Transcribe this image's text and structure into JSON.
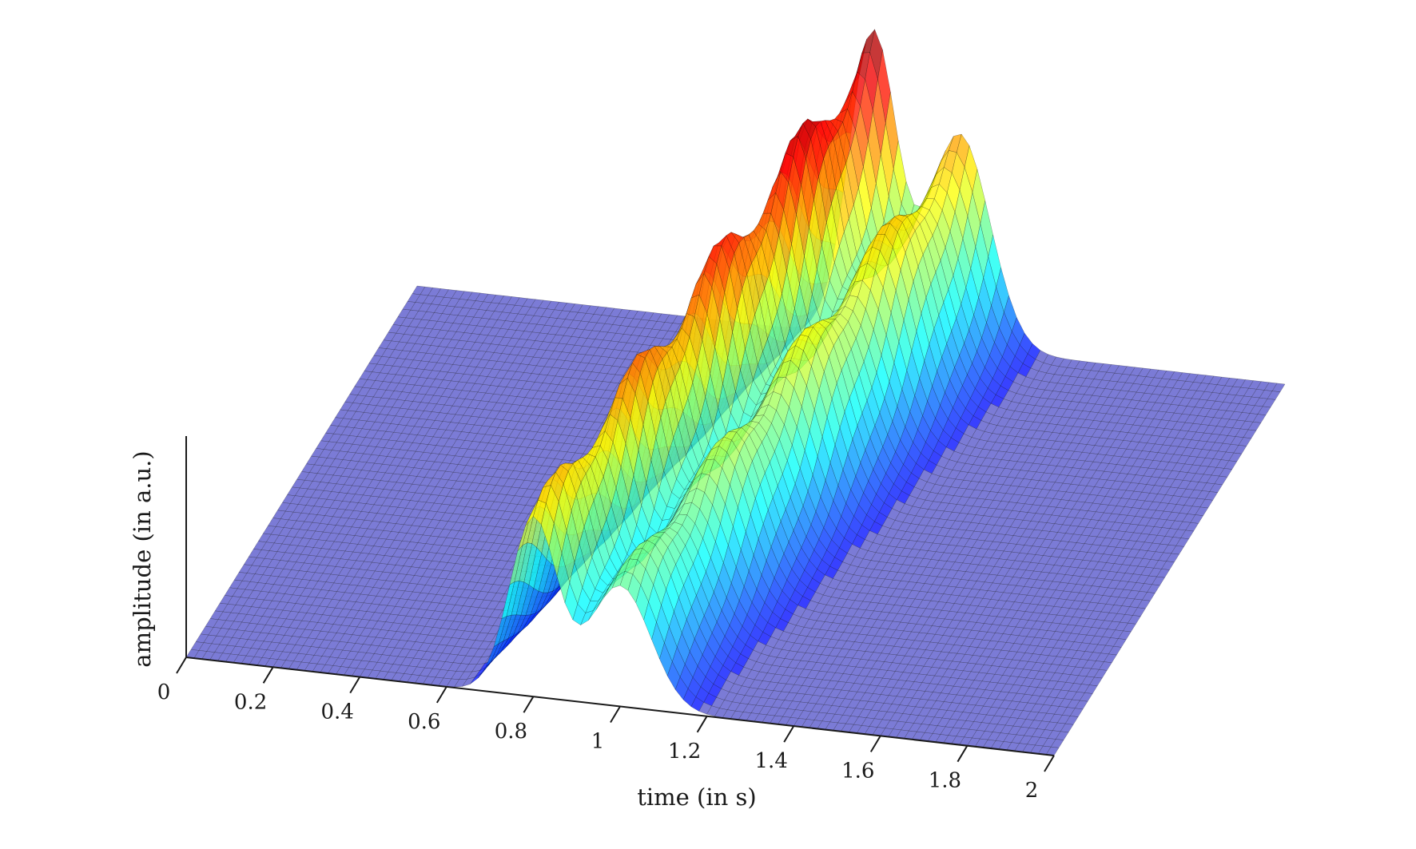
{
  "chart_data": {
    "type": "surface",
    "title": "",
    "xlabel": "time (in s)",
    "ylabel": "",
    "zlabel": "amplitude (in a.u.)",
    "xlim": [
      0,
      2
    ],
    "xticks": [
      0,
      0.2,
      0.4,
      0.6,
      0.8,
      1,
      1.2,
      1.4,
      1.6,
      1.8,
      2
    ],
    "xtick_labels": [
      "0",
      "0.2",
      "0.4",
      "0.6",
      "0.8",
      "1",
      "1.2",
      "1.4",
      "1.6",
      "1.8",
      "2"
    ],
    "colormap": "jet",
    "baseline_color": "#7b7bd6",
    "mesh_color": "#000000",
    "grid": false,
    "z_ticks_shown": false,
    "y_ticks_shown": false,
    "surface_model": {
      "description": "Sum of Gaussian pulses; pulse centre drifts later in time along the depth axis",
      "pulses": [
        {
          "amp_front": 0.62,
          "amp_back": 1.0,
          "center_front": 0.8,
          "center_back": 1.05,
          "width": 0.055
        },
        {
          "amp_front": 0.42,
          "amp_back": 0.7,
          "center_front": 1.0,
          "center_back": 1.25,
          "width": 0.07
        }
      ]
    }
  }
}
